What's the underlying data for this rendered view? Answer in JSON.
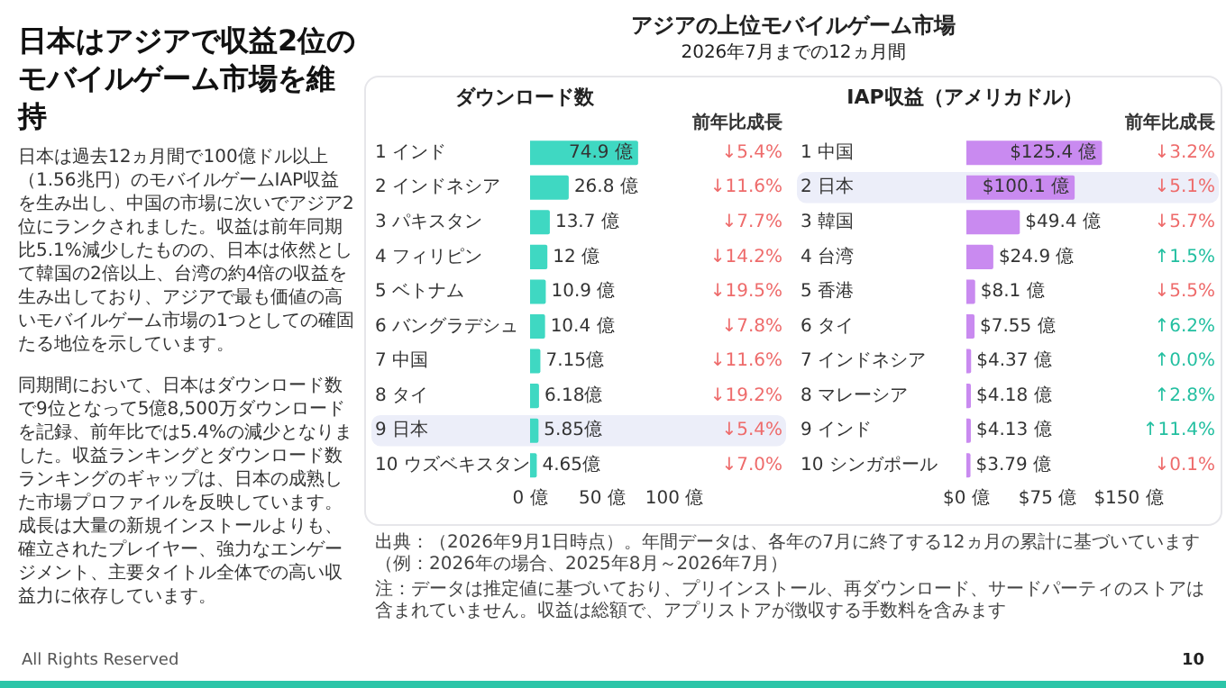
{
  "chart_data": [
    {
      "type": "other",
      "title": "日本はアジアで収益2位のモバイルゲーム市場を維持",
      "annotations": [
        "アジアの上位モバイルゲーム市場",
        "2026年7月までの12ヵ月間",
        "日本は過去12ヵ月間で100億ドル以上（1.56兆円）のモバイルゲームIAP収益を生み出し、中国の市場に次いでアジア2位にランクされました。収益は前年同期比5.1%減少したものの、日本は依然として韓国の2倍以上、台湾の約4倍の収益を生み出しており、アジアで最も価値の高いモバイルゲーム市場の1つとしての確固たる地位を示しています。",
        "同期間において、日本はダウンロード数で9位となって5億8,500万ダウンロードを記録、前年比では5.4%の減少となりました。収益ランキングとダウンロード数ランキングのギャップは、日本の成熟した市場プロファイルを反映しています。成長は大量の新規インストールよりも、確立されたプレイヤー、強力なエンゲージメント、主要タイトル全体での高い収益力に依存しています。",
        "出典：（2026年9月1日時点）。年間データは、各年の7月に終了する12ヵ月の累計に基づいています（例：2026年の場合、2025年8月～2026年7月）",
        "注：データは推定値に基づいており、プリインストール、再ダウンロード、サードパーティのストアは含まれていません。収益は総額で、アプリストアが徴収する手数料を含みます",
        "All Rights Reserved",
        "10"
      ]
    },
    {
      "type": "bar",
      "orientation": "horizontal",
      "title": "ダウンロード数",
      "categories": [
        "1 インド",
        "2 インドネシア",
        "3 パキスタン",
        "4 フィリピン",
        "5 ベトナム",
        "6 バングラデシュ",
        "7 中国",
        "8 タイ",
        "9 日本",
        "10 ウズベキスタン"
      ],
      "values": [
        74.9,
        26.8,
        13.7,
        12,
        10.9,
        10.4,
        7.15,
        6.18,
        5.85,
        4.65
      ],
      "value_labels": [
        "74.9 億",
        "26.8 億",
        "13.7 億",
        "12 億",
        "10.9 億",
        "10.4 億",
        "7.15億",
        "6.18億",
        "5.85億",
        "4.65億"
      ],
      "color": "#3fd8c2",
      "xlim": [
        0,
        100
      ],
      "xticks": [
        {
          "value": 0,
          "label": "0 億"
        },
        {
          "value": 50,
          "label": "50 億"
        },
        {
          "value": 100,
          "label": "100 億"
        }
      ],
      "bands": [
        {
          "axis": "y",
          "from": "9 日本",
          "to": "9 日本",
          "color": "#eceef9"
        }
      ],
      "annotations": [
        "前年比成長",
        "↓5.4%",
        "↓11.6%",
        "↓7.7%",
        "↓14.2%",
        "↓19.5%",
        "↓7.8%",
        "↓11.6%",
        "↓19.2%",
        "↓5.4%",
        "↓7.0%"
      ]
    },
    {
      "type": "bar",
      "orientation": "horizontal",
      "title": "IAP収益（アメリカドル）",
      "categories": [
        "1 中国",
        "2 日本",
        "3 韓国",
        "4 台湾",
        "5 香港",
        "6 タイ",
        "7 インドネシア",
        "8 マレーシア",
        "9 インド",
        "10 シンガポール"
      ],
      "values": [
        125.4,
        100.1,
        49.4,
        24.9,
        8.1,
        7.55,
        4.37,
        4.18,
        4.13,
        3.79
      ],
      "value_labels": [
        "$125.4 億",
        "$100.1 億",
        "$49.4 億",
        "$24.9 億",
        "$8.1 億",
        "$7.55 億",
        "$4.37 億",
        "$4.18 億",
        "$4.13 億",
        "$3.79 億"
      ],
      "color": "#c98af0",
      "xlim": [
        0,
        150
      ],
      "xticks": [
        {
          "value": 0,
          "label": "$0 億"
        },
        {
          "value": 75,
          "label": "$75 億"
        },
        {
          "value": 150,
          "label": "$150 億"
        }
      ],
      "bands": [
        {
          "axis": "y",
          "from": "2 日本",
          "to": "2 日本",
          "color": "#eceef9"
        }
      ],
      "annotations": [
        "前年比成長",
        "↓3.2%",
        "↓5.1%",
        "↓5.7%",
        "↑1.5%",
        "↓5.5%",
        "↑6.2%",
        "↑0.0%",
        "↑2.8%",
        "↑11.4%",
        "↓0.1%"
      ]
    }
  ]
}
